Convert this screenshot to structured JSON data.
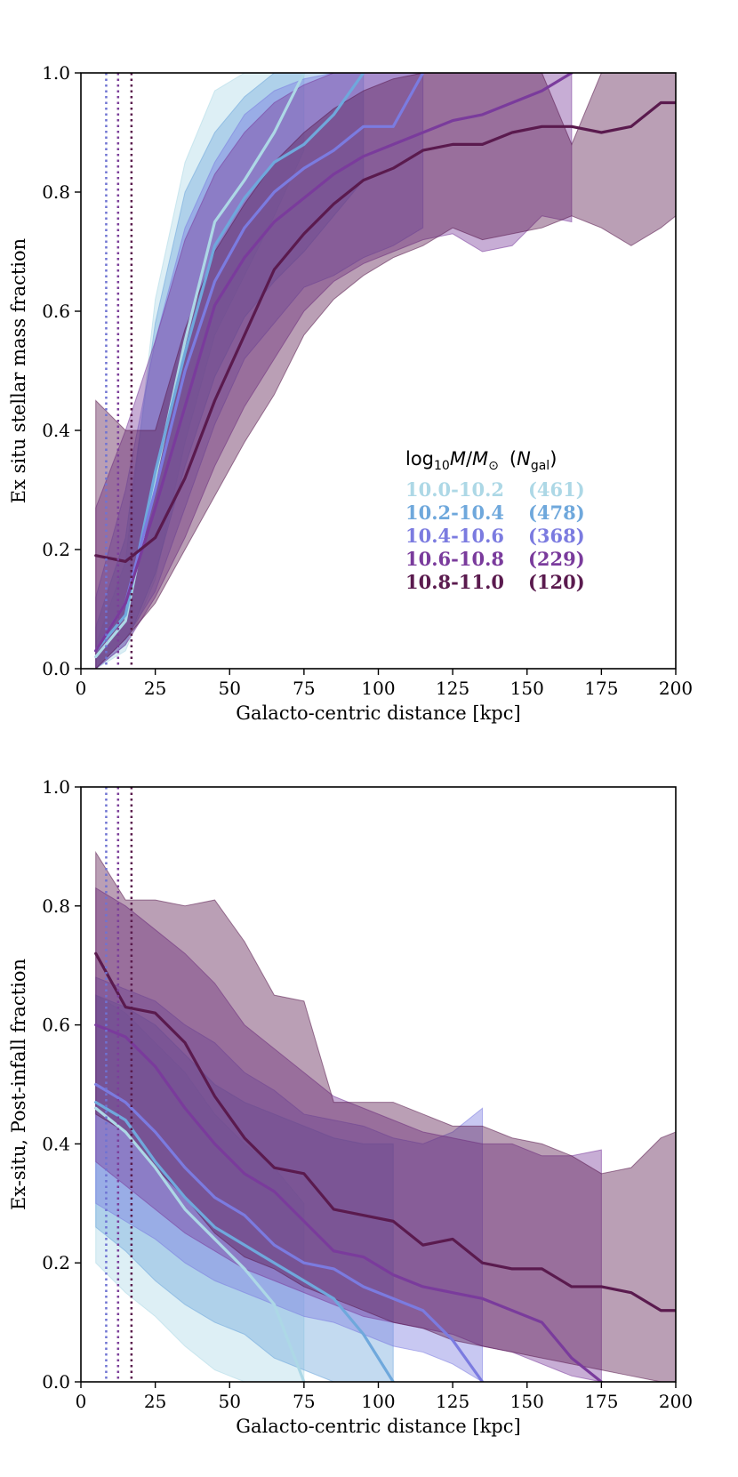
{
  "chart_data": [
    {
      "type": "line",
      "xlabel": "Galacto-centric distance [kpc]",
      "ylabel": "Ex situ stellar mass fraction",
      "xlim": [
        0,
        200
      ],
      "ylim": [
        0,
        1
      ],
      "xticks": [
        0,
        25,
        50,
        75,
        100,
        125,
        150,
        175,
        200
      ],
      "yticks": [
        0.0,
        0.2,
        0.4,
        0.6,
        0.8,
        1.0
      ],
      "xtick_labels": [
        "0",
        "25",
        "50",
        "75",
        "100",
        "125",
        "150",
        "175",
        "200"
      ],
      "ytick_labels": [
        "0.0",
        "0.2",
        "0.4",
        "0.6",
        "0.8",
        "1.0"
      ],
      "grid": false,
      "vlines": [
        {
          "x": 8.5,
          "color": "#6f73d2"
        },
        {
          "x": 12.5,
          "color": "#7c3f9a"
        },
        {
          "x": 17,
          "color": "#591a4c"
        }
      ],
      "legend": {
        "placement": "center-right",
        "title_parts": [
          "log",
          "10",
          "M",
          "/",
          "M",
          "⊙",
          "(",
          "N",
          "gal",
          ")"
        ],
        "entries": [
          {
            "range": "10.0-10.2",
            "count": "(461)",
            "color": "#add8e6"
          },
          {
            "range": "10.2-10.4",
            "count": "(478)",
            "color": "#6fa8dc"
          },
          {
            "range": "10.4-10.6",
            "count": "(368)",
            "color": "#7b7be0"
          },
          {
            "range": "10.6-10.8",
            "count": "(229)",
            "color": "#7a3b9c"
          },
          {
            "range": "10.8-11.0",
            "count": "(120)",
            "color": "#5a1a4e"
          }
        ]
      },
      "series": [
        {
          "color": "#add8e6",
          "x": [
            5,
            15,
            25,
            35,
            45,
            55,
            65,
            75
          ],
          "y": [
            0.02,
            0.08,
            0.32,
            0.55,
            0.75,
            0.82,
            0.9,
            1.0
          ],
          "lower": [
            0.0,
            0.03,
            0.15,
            0.38,
            0.56,
            0.66,
            0.76,
            0.87
          ],
          "upper": [
            0.04,
            0.18,
            0.62,
            0.85,
            0.97,
            1.0,
            1.0,
            1.0
          ]
        },
        {
          "color": "#6fa8dc",
          "x": [
            5,
            15,
            25,
            35,
            45,
            55,
            65,
            75,
            85,
            95
          ],
          "y": [
            0.03,
            0.09,
            0.33,
            0.53,
            0.71,
            0.79,
            0.85,
            0.88,
            0.93,
            1.0
          ],
          "lower": [
            0.0,
            0.04,
            0.16,
            0.34,
            0.49,
            0.59,
            0.65,
            0.7,
            0.76,
            0.82
          ],
          "upper": [
            0.07,
            0.22,
            0.58,
            0.8,
            0.9,
            0.96,
            1.0,
            1.0,
            1.0,
            1.0
          ]
        },
        {
          "color": "#7b7be0",
          "x": [
            5,
            15,
            25,
            35,
            45,
            55,
            65,
            75,
            85,
            95,
            105,
            115
          ],
          "y": [
            0.03,
            0.11,
            0.3,
            0.5,
            0.65,
            0.74,
            0.8,
            0.84,
            0.87,
            0.91,
            0.91,
            1.0
          ],
          "lower": [
            0.0,
            0.05,
            0.13,
            0.27,
            0.41,
            0.52,
            0.58,
            0.64,
            0.66,
            0.69,
            0.71,
            0.74
          ],
          "upper": [
            0.12,
            0.3,
            0.55,
            0.74,
            0.85,
            0.93,
            0.97,
            0.99,
            1.0,
            1.0,
            1.0,
            1.0
          ]
        },
        {
          "color": "#7a3b9c",
          "x": [
            5,
            15,
            25,
            35,
            45,
            55,
            65,
            75,
            85,
            95,
            105,
            115,
            125,
            135,
            145,
            155,
            165
          ],
          "y": [
            0.03,
            0.11,
            0.27,
            0.44,
            0.61,
            0.69,
            0.75,
            0.79,
            0.83,
            0.86,
            0.88,
            0.9,
            0.92,
            0.93,
            0.95,
            0.97,
            1.0
          ],
          "lower": [
            0.0,
            0.04,
            0.12,
            0.22,
            0.34,
            0.44,
            0.52,
            0.6,
            0.65,
            0.68,
            0.7,
            0.72,
            0.73,
            0.7,
            0.71,
            0.76,
            0.75
          ],
          "upper": [
            0.27,
            0.4,
            0.55,
            0.72,
            0.83,
            0.9,
            0.95,
            0.98,
            1.0,
            1.0,
            1.0,
            1.0,
            1.0,
            1.0,
            1.0,
            1.0,
            1.0
          ]
        },
        {
          "color": "#5a1a4e",
          "x": [
            5,
            15,
            25,
            35,
            45,
            55,
            65,
            75,
            85,
            95,
            105,
            115,
            125,
            135,
            145,
            155,
            165,
            175,
            185,
            195,
            200
          ],
          "y": [
            0.19,
            0.18,
            0.22,
            0.32,
            0.45,
            0.56,
            0.67,
            0.73,
            0.78,
            0.82,
            0.84,
            0.87,
            0.88,
            0.88,
            0.9,
            0.91,
            0.91,
            0.9,
            0.91,
            0.95,
            0.95
          ],
          "lower": [
            0.0,
            0.05,
            0.11,
            0.2,
            0.29,
            0.38,
            0.46,
            0.56,
            0.62,
            0.66,
            0.69,
            0.71,
            0.74,
            0.72,
            0.73,
            0.74,
            0.76,
            0.74,
            0.71,
            0.74,
            0.76
          ],
          "upper": [
            0.45,
            0.4,
            0.4,
            0.57,
            0.7,
            0.78,
            0.85,
            0.9,
            0.94,
            0.97,
            0.99,
            1.0,
            1.0,
            1.0,
            1.0,
            1.0,
            0.88,
            1.0,
            1.0,
            1.0,
            1.0
          ]
        }
      ]
    },
    {
      "type": "line",
      "xlabel": "Galacto-centric distance [kpc]",
      "ylabel": "Ex-situ, Post-infall fraction",
      "xlim": [
        0,
        200
      ],
      "ylim": [
        0,
        1
      ],
      "xticks": [
        0,
        25,
        50,
        75,
        100,
        125,
        150,
        175,
        200
      ],
      "yticks": [
        0.0,
        0.2,
        0.4,
        0.6,
        0.8,
        1.0
      ],
      "xtick_labels": [
        "0",
        "25",
        "50",
        "75",
        "100",
        "125",
        "150",
        "175",
        "200"
      ],
      "ytick_labels": [
        "0.0",
        "0.2",
        "0.4",
        "0.6",
        "0.8",
        "1.0"
      ],
      "grid": false,
      "vlines": [
        {
          "x": 8.5,
          "color": "#6f73d2"
        },
        {
          "x": 12.5,
          "color": "#7c3f9a"
        },
        {
          "x": 17,
          "color": "#591a4c"
        }
      ],
      "series": [
        {
          "color": "#add8e6",
          "x": [
            5,
            15,
            25,
            35,
            45,
            55,
            65,
            75
          ],
          "y": [
            0.46,
            0.42,
            0.36,
            0.29,
            0.24,
            0.19,
            0.13,
            0.0
          ],
          "lower": [
            0.2,
            0.15,
            0.11,
            0.06,
            0.02,
            0.0,
            0.0,
            0.0
          ],
          "upper": [
            0.65,
            0.62,
            0.57,
            0.52,
            0.45,
            0.4,
            0.36,
            0.3
          ]
        },
        {
          "color": "#6fa8dc",
          "x": [
            5,
            15,
            25,
            35,
            45,
            55,
            65,
            75,
            85,
            95,
            105
          ],
          "y": [
            0.47,
            0.44,
            0.37,
            0.31,
            0.26,
            0.23,
            0.2,
            0.17,
            0.14,
            0.08,
            0.0
          ],
          "lower": [
            0.26,
            0.22,
            0.17,
            0.13,
            0.1,
            0.08,
            0.04,
            0.02,
            0.0,
            0.0,
            0.0
          ],
          "upper": [
            0.65,
            0.63,
            0.6,
            0.55,
            0.5,
            0.47,
            0.45,
            0.43,
            0.41,
            0.4,
            0.4
          ]
        },
        {
          "color": "#7b7be0",
          "x": [
            5,
            15,
            25,
            35,
            45,
            55,
            65,
            75,
            85,
            95,
            105,
            115,
            125,
            135
          ],
          "y": [
            0.5,
            0.47,
            0.42,
            0.36,
            0.31,
            0.28,
            0.23,
            0.2,
            0.19,
            0.16,
            0.14,
            0.12,
            0.07,
            0.0
          ],
          "lower": [
            0.3,
            0.27,
            0.24,
            0.2,
            0.17,
            0.15,
            0.13,
            0.11,
            0.1,
            0.08,
            0.06,
            0.05,
            0.03,
            0.0
          ],
          "upper": [
            0.68,
            0.66,
            0.64,
            0.6,
            0.57,
            0.52,
            0.49,
            0.45,
            0.44,
            0.43,
            0.41,
            0.4,
            0.42,
            0.46
          ]
        },
        {
          "color": "#7a3b9c",
          "x": [
            5,
            15,
            25,
            35,
            45,
            55,
            65,
            75,
            85,
            95,
            105,
            115,
            125,
            135,
            145,
            155,
            165,
            175
          ],
          "y": [
            0.6,
            0.58,
            0.53,
            0.46,
            0.4,
            0.35,
            0.32,
            0.27,
            0.22,
            0.21,
            0.18,
            0.16,
            0.15,
            0.14,
            0.12,
            0.1,
            0.04,
            0.0
          ],
          "lower": [
            0.37,
            0.33,
            0.29,
            0.25,
            0.22,
            0.19,
            0.17,
            0.15,
            0.13,
            0.11,
            0.1,
            0.09,
            0.08,
            0.06,
            0.05,
            0.03,
            0.01,
            0.0
          ],
          "upper": [
            0.83,
            0.8,
            0.76,
            0.72,
            0.67,
            0.6,
            0.56,
            0.52,
            0.48,
            0.46,
            0.44,
            0.42,
            0.41,
            0.4,
            0.4,
            0.38,
            0.38,
            0.39
          ]
        },
        {
          "color": "#5a1a4e",
          "x": [
            5,
            15,
            25,
            35,
            45,
            55,
            65,
            75,
            85,
            95,
            105,
            115,
            125,
            135,
            145,
            155,
            165,
            175,
            185,
            195,
            200
          ],
          "y": [
            0.72,
            0.63,
            0.62,
            0.57,
            0.48,
            0.41,
            0.36,
            0.35,
            0.29,
            0.28,
            0.27,
            0.23,
            0.24,
            0.2,
            0.19,
            0.19,
            0.16,
            0.16,
            0.15,
            0.12,
            0.12
          ],
          "lower": [
            0.45,
            0.42,
            0.36,
            0.31,
            0.25,
            0.21,
            0.19,
            0.16,
            0.14,
            0.12,
            0.1,
            0.09,
            0.07,
            0.06,
            0.05,
            0.04,
            0.03,
            0.02,
            0.01,
            0.0,
            0.0
          ],
          "upper": [
            0.89,
            0.81,
            0.81,
            0.8,
            0.81,
            0.74,
            0.65,
            0.64,
            0.47,
            0.47,
            0.47,
            0.45,
            0.43,
            0.43,
            0.41,
            0.4,
            0.38,
            0.35,
            0.36,
            0.41,
            0.42
          ]
        }
      ]
    }
  ]
}
